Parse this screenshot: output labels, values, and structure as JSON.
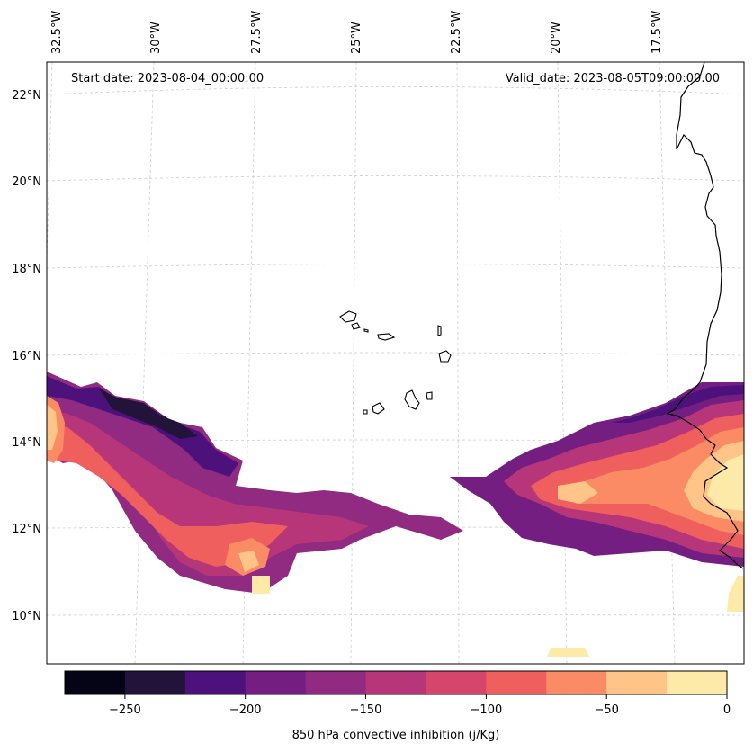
{
  "map": {
    "start_label": "Start date: 2023-08-04_00:00:00",
    "valid_label": "Valid_date: 2023-08-05T09:00:00.00",
    "lon_labels": [
      "32.5°W",
      "30°W",
      "27.5°W",
      "25°W",
      "22.5°W",
      "20°W",
      "17.5°W"
    ],
    "lat_labels": [
      "22°N",
      "20°N",
      "18°N",
      "16°N",
      "14°N",
      "12°N",
      "10°N"
    ],
    "colorbar_ticks": [
      "−250",
      "−200",
      "−150",
      "−100",
      "−50",
      "0"
    ],
    "colorbar_label": "850 hPa convective inhibition (j/Kg)",
    "colors": [
      "#050416",
      "#211339",
      "#4c117a",
      "#741e82",
      "#912b81",
      "#b63679",
      "#d6456c",
      "#ef5f5e",
      "#fa8b64",
      "#fec488",
      "#fde9a8"
    ]
  }
}
